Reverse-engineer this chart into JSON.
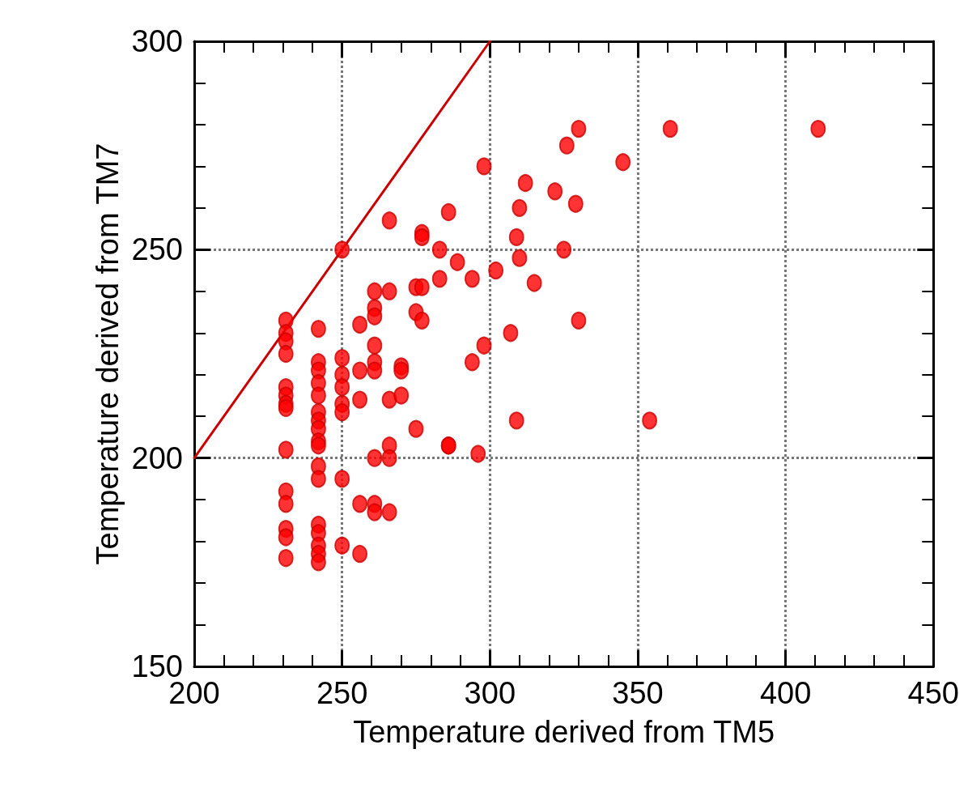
{
  "chart_data": {
    "type": "scatter",
    "xlabel": "Temperature derived from TM5",
    "ylabel": "Temperature derived from TM7",
    "xlim": [
      200,
      450
    ],
    "xticks": [
      200,
      250,
      300,
      350,
      400,
      450
    ],
    "ylim": [
      150,
      300
    ],
    "yticks": [
      150,
      200,
      250,
      300
    ],
    "grid": true,
    "marker": "circle",
    "series": [
      {
        "color": "#ff0000",
        "x": [
          231,
          231,
          231,
          231,
          231,
          231,
          231,
          231,
          231,
          231,
          231,
          231,
          231,
          231,
          242,
          242,
          242,
          242,
          242,
          242,
          242,
          242,
          242,
          242,
          242,
          242,
          242,
          242,
          242,
          242,
          242,
          250,
          250,
          250,
          250,
          250,
          250,
          250,
          250,
          256,
          256,
          256,
          256,
          256,
          261,
          261,
          261,
          261,
          261,
          261,
          261,
          261,
          261,
          266,
          266,
          266,
          266,
          266,
          266,
          270,
          270,
          270,
          275,
          275,
          275,
          277,
          277,
          277,
          277,
          283,
          283,
          286,
          286,
          286,
          289,
          294,
          294,
          296,
          298,
          298,
          302,
          307,
          309,
          309,
          310,
          310,
          312,
          315,
          322,
          325,
          326,
          329,
          330,
          330,
          345,
          354,
          361,
          411
        ],
        "values": [
          233,
          230,
          228,
          225,
          217,
          215,
          213,
          212,
          202,
          192,
          189,
          183,
          181,
          176,
          231,
          223,
          221,
          218,
          215,
          211,
          209,
          207,
          204,
          203,
          198,
          195,
          184,
          182,
          179,
          177,
          175,
          224,
          220,
          217,
          213,
          211,
          195,
          179,
          250,
          232,
          221,
          214,
          189,
          177,
          240,
          236,
          234,
          227,
          223,
          221,
          200,
          189,
          187,
          257,
          240,
          214,
          203,
          200,
          187,
          222,
          221,
          215,
          241,
          235,
          207,
          254,
          253,
          241,
          233,
          250,
          243,
          259,
          203,
          203,
          247,
          243,
          223,
          201,
          270,
          227,
          245,
          230,
          253,
          209,
          260,
          248,
          266,
          242,
          264,
          250,
          275,
          261,
          279,
          233,
          271,
          209,
          279,
          279
        ]
      },
      {
        "type": "line",
        "color": "#cc0000",
        "x": [
          200,
          300
        ],
        "values": [
          200,
          300
        ],
        "marker": "none",
        "line_style": "solid"
      }
    ]
  }
}
